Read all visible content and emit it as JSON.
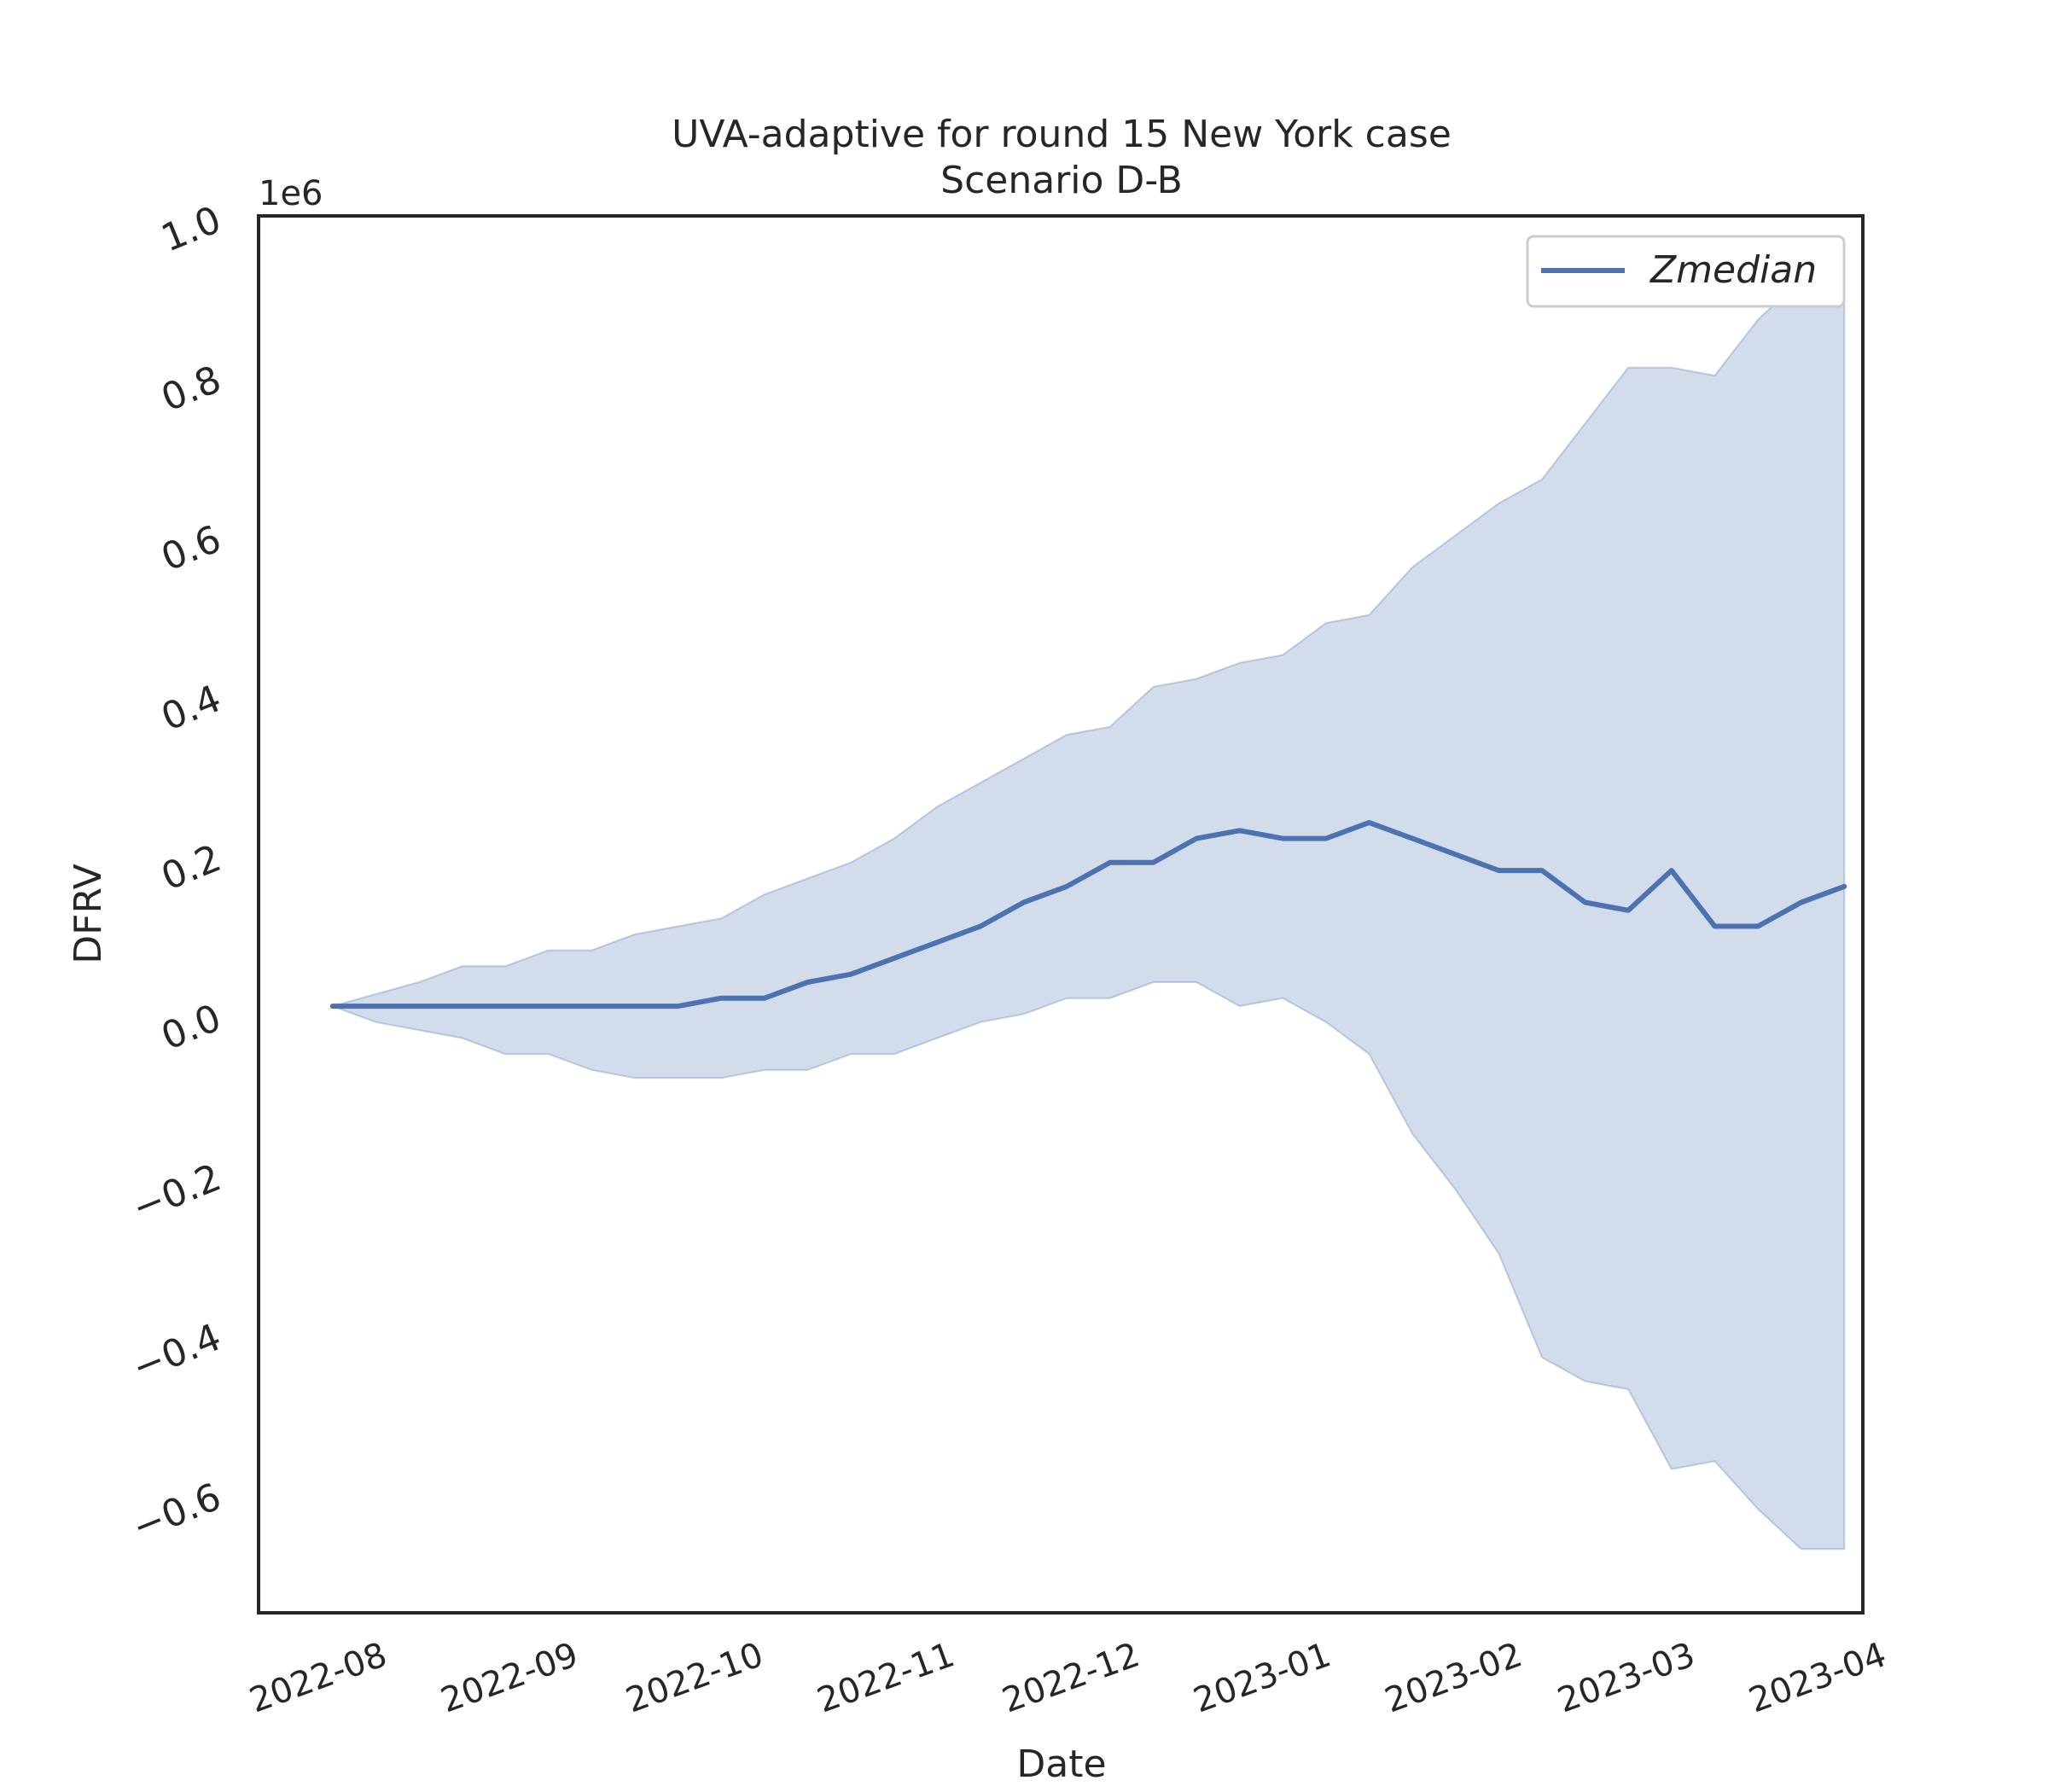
{
  "chart_data": {
    "type": "line",
    "title": "UVA-adaptive for round 15 New York case",
    "subtitle": "Scenario D-B",
    "xlabel": "Date",
    "ylabel": "DFRV",
    "y_offset_label": "1e6",
    "ylim": [
      -0.75,
      1.0
    ],
    "xlim": [
      "2022-07-15",
      "2023-04-01"
    ],
    "y_ticks": [
      -0.6,
      -0.4,
      -0.2,
      0.0,
      0.2,
      0.4,
      0.6,
      0.8,
      1.0
    ],
    "y_tick_labels": [
      "−0.6",
      "−0.4",
      "−0.2",
      "0.0",
      "0.2",
      "0.4",
      "0.6",
      "0.8",
      "1.0"
    ],
    "x_ticks": [
      "2022-08-01",
      "2022-09-01",
      "2022-10-01",
      "2022-11-01",
      "2022-12-01",
      "2023-01-01",
      "2023-02-01",
      "2023-03-01",
      "2023-04-01"
    ],
    "x_tick_labels": [
      "2022-08",
      "2022-09",
      "2022-10",
      "2022-11",
      "2022-12",
      "2023-01",
      "2023-02",
      "2023-03",
      "2023-04"
    ],
    "legend": {
      "position": "upper-right",
      "entries": [
        "Zmedian"
      ]
    },
    "grid": false,
    "colors": {
      "line": "#4c72b0",
      "band": "#4c72b0"
    },
    "x": [
      "2022-07-27",
      "2022-08-03",
      "2022-08-10",
      "2022-08-17",
      "2022-08-24",
      "2022-08-31",
      "2022-09-07",
      "2022-09-14",
      "2022-09-21",
      "2022-09-28",
      "2022-10-05",
      "2022-10-12",
      "2022-10-19",
      "2022-10-26",
      "2022-11-02",
      "2022-11-09",
      "2022-11-16",
      "2022-11-23",
      "2022-11-30",
      "2022-12-07",
      "2022-12-14",
      "2022-12-21",
      "2022-12-28",
      "2023-01-04",
      "2023-01-11",
      "2023-01-18",
      "2023-01-25",
      "2023-02-01",
      "2023-02-08",
      "2023-02-15",
      "2023-02-22",
      "2023-03-01",
      "2023-03-08",
      "2023-03-15",
      "2023-03-22",
      "2023-03-29"
    ],
    "series": [
      {
        "name": "Zmedian",
        "values": [
          0.01,
          0.01,
          0.01,
          0.01,
          0.01,
          0.01,
          0.01,
          0.01,
          0.01,
          0.02,
          0.02,
          0.04,
          0.05,
          0.07,
          0.09,
          0.11,
          0.14,
          0.16,
          0.19,
          0.19,
          0.22,
          0.23,
          0.22,
          0.22,
          0.24,
          0.22,
          0.2,
          0.18,
          0.18,
          0.14,
          0.13,
          0.18,
          0.11,
          0.11,
          0.14,
          0.16
        ]
      }
    ],
    "band": {
      "upper": [
        0.01,
        0.025,
        0.04,
        0.06,
        0.06,
        0.08,
        0.08,
        0.1,
        0.11,
        0.12,
        0.15,
        0.17,
        0.19,
        0.22,
        0.26,
        0.29,
        0.32,
        0.35,
        0.36,
        0.41,
        0.42,
        0.44,
        0.45,
        0.49,
        0.5,
        0.56,
        0.6,
        0.64,
        0.67,
        0.74,
        0.81,
        0.81,
        0.8,
        0.87,
        0.92,
        0.95
      ],
      "lower": [
        0.01,
        -0.01,
        -0.02,
        -0.03,
        -0.05,
        -0.05,
        -0.07,
        -0.08,
        -0.08,
        -0.08,
        -0.07,
        -0.07,
        -0.05,
        -0.05,
        -0.03,
        -0.01,
        0.0,
        0.02,
        0.02,
        0.04,
        0.04,
        0.01,
        0.02,
        -0.01,
        -0.05,
        -0.15,
        -0.22,
        -0.3,
        -0.43,
        -0.46,
        -0.47,
        -0.57,
        -0.56,
        -0.62,
        -0.67,
        -0.67
      ]
    }
  }
}
